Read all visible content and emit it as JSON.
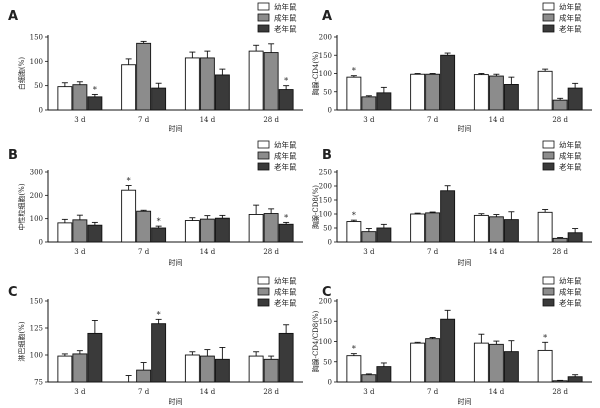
{
  "legend": {
    "young": "幼年鼠",
    "adult": "成年鼠",
    "old": "老年鼠"
  },
  "colors": {
    "young": "#ffffff",
    "adult": "#8c8c8c",
    "old": "#3a3a3a",
    "stroke": "#111111"
  },
  "chart_data": [
    {
      "type": "bar",
      "panel_label": "A",
      "ylabel": "白细胞(%)",
      "xlabel": "时间",
      "categories": [
        "3 d",
        "7 d",
        "14 d",
        "28 d"
      ],
      "ylim": [
        0,
        150
      ],
      "yticks": [
        0,
        50,
        100,
        150
      ],
      "series": [
        {
          "name": "幼年鼠",
          "values": [
            48,
            93,
            107,
            121
          ],
          "errors": [
            8,
            12,
            12,
            12
          ]
        },
        {
          "name": "成年鼠",
          "values": [
            52,
            137,
            107,
            118
          ],
          "errors": [
            6,
            4,
            14,
            18
          ]
        },
        {
          "name": "老年鼠",
          "values": [
            27,
            45,
            72,
            42
          ],
          "errors": [
            5,
            10,
            12,
            8
          ]
        }
      ],
      "stars": [
        [
          0,
          2
        ],
        [
          3,
          2
        ]
      ]
    },
    {
      "type": "bar",
      "panel_label": "B",
      "ylabel": "中性粒细胞(%)",
      "xlabel": "时间",
      "categories": [
        "3 d",
        "7 d",
        "14 d",
        "28 d"
      ],
      "ylim": [
        0,
        300
      ],
      "yticks": [
        0,
        100,
        200,
        300
      ],
      "series": [
        {
          "name": "幼年鼠",
          "values": [
            82,
            222,
            92,
            118
          ],
          "errors": [
            15,
            20,
            12,
            40
          ]
        },
        {
          "name": "成年鼠",
          "values": [
            95,
            132,
            98,
            122
          ],
          "errors": [
            20,
            4,
            15,
            20
          ]
        },
        {
          "name": "老年鼠",
          "values": [
            72,
            60,
            102,
            76
          ],
          "errors": [
            12,
            8,
            12,
            8
          ]
        }
      ],
      "stars": [
        [
          1,
          0
        ],
        [
          1,
          2
        ],
        [
          3,
          2
        ]
      ]
    },
    {
      "type": "bar",
      "panel_label": "C",
      "ylabel": "淋巴细胞(%)",
      "xlabel": "时间",
      "categories": [
        "3 d",
        "7 d",
        "14 d",
        "28 d"
      ],
      "ylim": [
        75,
        150
      ],
      "yticks": [
        75,
        100,
        125,
        150
      ],
      "series": [
        {
          "name": "幼年鼠",
          "values": [
            99,
            73,
            100,
            99
          ],
          "errors": [
            2,
            8,
            3,
            4
          ]
        },
        {
          "name": "成年鼠",
          "values": [
            101,
            86,
            99,
            96
          ],
          "errors": [
            3,
            7,
            6,
            3
          ]
        },
        {
          "name": "老年鼠",
          "values": [
            120,
            129,
            96,
            120
          ],
          "errors": [
            12,
            4,
            11,
            8
          ]
        }
      ],
      "stars": [
        [
          1,
          2
        ]
      ]
    },
    {
      "type": "bar",
      "panel_label": "A",
      "ylabel": "胸腺-CD4(%)",
      "xlabel": "时间",
      "categories": [
        "3 d",
        "7 d",
        "14 d",
        "28 d"
      ],
      "ylim": [
        0,
        200
      ],
      "yticks": [
        0,
        50,
        100,
        150,
        200
      ],
      "series": [
        {
          "name": "幼年鼠",
          "values": [
            90,
            98,
            97,
            106
          ],
          "errors": [
            4,
            2,
            3,
            6
          ]
        },
        {
          "name": "成年鼠",
          "values": [
            36,
            98,
            93,
            27
          ],
          "errors": [
            3,
            2,
            5,
            5
          ]
        },
        {
          "name": "老年鼠",
          "values": [
            47,
            150,
            70,
            60
          ],
          "errors": [
            15,
            6,
            20,
            13
          ]
        }
      ],
      "stars": [
        [
          0,
          0
        ]
      ]
    },
    {
      "type": "bar",
      "panel_label": "B",
      "ylabel": "胸腺-CD8(%)",
      "xlabel": "时间",
      "categories": [
        "3 d",
        "7 d",
        "14 d",
        "28 d"
      ],
      "ylim": [
        0,
        250
      ],
      "yticks": [
        0,
        50,
        100,
        150,
        200,
        250
      ],
      "series": [
        {
          "name": "幼年鼠",
          "values": [
            73,
            100,
            95,
            106
          ],
          "errors": [
            5,
            3,
            6,
            10
          ]
        },
        {
          "name": "成年鼠",
          "values": [
            37,
            104,
            90,
            13
          ],
          "errors": [
            11,
            3,
            8,
            3
          ]
        },
        {
          "name": "老年鼠",
          "values": [
            50,
            183,
            80,
            33
          ],
          "errors": [
            13,
            18,
            28,
            15
          ]
        }
      ],
      "stars": [
        [
          0,
          0
        ]
      ]
    },
    {
      "type": "bar",
      "panel_label": "C",
      "ylabel": "胸腺-CD4/CD8(%)",
      "xlabel": "时间",
      "categories": [
        "3 d",
        "7 d",
        "14 d",
        "28 d"
      ],
      "ylim": [
        0,
        200
      ],
      "yticks": [
        0,
        50,
        100,
        150,
        200
      ],
      "series": [
        {
          "name": "幼年鼠",
          "values": [
            65,
            96,
            96,
            78
          ],
          "errors": [
            5,
            2,
            22,
            20
          ]
        },
        {
          "name": "成年鼠",
          "values": [
            18,
            107,
            93,
            3
          ],
          "errors": [
            2,
            3,
            8,
            1
          ]
        },
        {
          "name": "老年鼠",
          "values": [
            38,
            155,
            75,
            13
          ],
          "errors": [
            9,
            22,
            27,
            5
          ]
        }
      ],
      "stars": [
        [
          0,
          0
        ],
        [
          3,
          0
        ]
      ]
    }
  ]
}
